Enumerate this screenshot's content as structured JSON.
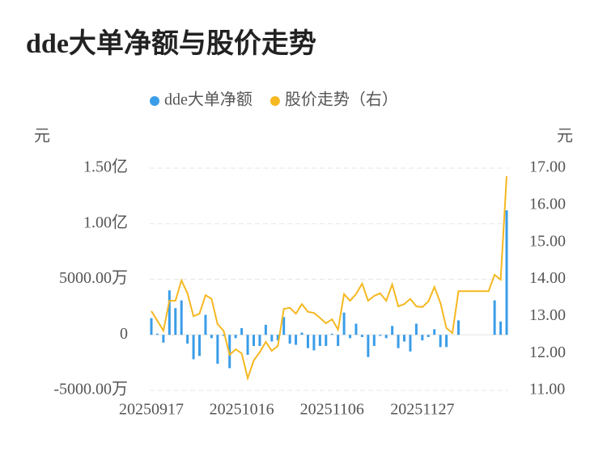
{
  "chart_data": {
    "type": "bar-line",
    "title": "dde大单净额与股价走势",
    "y_label": "元",
    "y2_label": "元",
    "categories": [
      "20250917",
      null,
      null,
      null,
      null,
      null,
      null,
      null,
      null,
      null,
      null,
      null,
      null,
      null,
      null,
      "20251016",
      null,
      null,
      null,
      null,
      null,
      null,
      null,
      null,
      null,
      null,
      null,
      null,
      null,
      null,
      "20251106",
      null,
      null,
      null,
      null,
      null,
      null,
      null,
      null,
      null,
      null,
      null,
      null,
      null,
      null,
      "20251127",
      null,
      null,
      null,
      null,
      null,
      null,
      null,
      null,
      null,
      null,
      null,
      null,
      null,
      null
    ],
    "series": [
      {
        "name": "dde大单净额",
        "color": "#3a9de8",
        "type": "bar",
        "values": [
          1500,
          100,
          -700,
          4000,
          2400,
          3100,
          -800,
          -2200,
          -1900,
          1800,
          -300,
          -2600,
          -100,
          -3000,
          -300,
          600,
          -1800,
          -1000,
          -1000,
          900,
          -600,
          -500,
          1600,
          -800,
          -900,
          200,
          -1200,
          -1400,
          -1000,
          -1000,
          100,
          -1000,
          2000,
          -300,
          1000,
          -200,
          -2000,
          -1000,
          -100,
          -300,
          800,
          -1200,
          -600,
          -1500,
          1000,
          -500,
          -200,
          500,
          -1100,
          -1100,
          0,
          1300,
          null,
          null,
          null,
          null,
          null,
          3100,
          1200,
          11200
        ]
      },
      {
        "name": "股价走势（右）",
        "color": "#f5b820",
        "type": "line",
        "axis": "y2",
        "values": [
          13.14,
          12.88,
          12.61,
          13.42,
          13.42,
          13.97,
          13.62,
          13.0,
          13.07,
          13.57,
          13.47,
          12.79,
          12.61,
          11.96,
          12.11,
          12.0,
          11.33,
          11.81,
          12.03,
          12.31,
          12.07,
          12.2,
          13.2,
          13.23,
          13.07,
          13.33,
          13.12,
          13.09,
          12.96,
          12.81,
          12.92,
          12.64,
          13.6,
          13.42,
          13.6,
          13.88,
          13.42,
          13.55,
          13.62,
          13.42,
          13.86,
          13.27,
          13.33,
          13.47,
          13.27,
          13.25,
          13.4,
          13.79,
          13.36,
          12.68,
          12.55,
          13.68,
          13.68,
          13.68,
          13.68,
          13.68,
          13.68,
          14.12,
          13.99,
          16.78
        ]
      }
    ],
    "ylim": [
      -5000,
      15000
    ],
    "yticks": [
      {
        "value": -5000,
        "label": "-5000.00万"
      },
      0,
      {
        "value": 5000,
        "label": "5000.00万"
      },
      {
        "value": 10000,
        "label": "1.00亿"
      },
      {
        "value": 15000,
        "label": "1.50亿"
      }
    ],
    "y2lim": [
      11,
      17
    ],
    "y2ticks": [
      {
        "value": 11,
        "label": "11.00"
      },
      {
        "value": 12,
        "label": "12.00"
      },
      {
        "value": 13,
        "label": "13.00"
      },
      {
        "value": 14,
        "label": "14.00"
      },
      {
        "value": 15,
        "label": "15.00"
      },
      {
        "value": 16,
        "label": "16.00"
      },
      {
        "value": 17,
        "label": "17.00"
      }
    ],
    "grid": true,
    "legend": "top"
  }
}
